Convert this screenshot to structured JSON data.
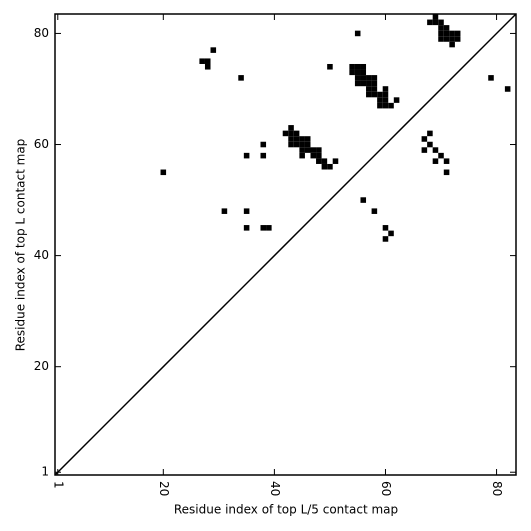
{
  "chart_data": {
    "type": "scatter",
    "xlabel": "Residue index of top L/5 contact map",
    "ylabel": "Residue index of top L contact map",
    "xlim": [
      0.5,
      83.5
    ],
    "ylim": [
      0.5,
      83.5
    ],
    "xticks": [
      1,
      20,
      40,
      60,
      80
    ],
    "yticks": [
      1,
      20,
      40,
      60,
      80
    ],
    "color": "#000000",
    "marker": "square",
    "x": [
      20,
      29,
      27,
      28,
      28,
      34,
      55,
      50,
      54,
      54,
      55,
      55,
      56,
      56,
      55,
      56,
      55,
      56,
      57,
      57,
      58,
      57,
      58,
      57,
      58,
      58,
      59,
      59,
      60,
      60,
      60,
      59,
      60,
      61,
      62,
      68,
      69,
      69,
      70,
      70,
      71,
      70,
      71,
      72,
      73,
      70,
      71,
      72,
      73,
      72,
      79,
      82,
      42,
      43,
      43,
      44,
      43,
      44,
      43,
      44,
      45,
      46,
      45,
      46,
      45,
      46,
      47,
      48,
      45,
      47,
      48,
      48,
      49,
      49,
      50,
      51,
      35,
      38,
      38,
      31,
      35,
      35,
      38,
      39,
      56,
      58,
      60,
      61,
      60,
      67,
      68,
      68,
      67,
      69,
      70,
      69,
      71,
      71
    ],
    "y": [
      55,
      77,
      75,
      75,
      74,
      72,
      80,
      74,
      73,
      74,
      74,
      73,
      74,
      73,
      72,
      72,
      71,
      71,
      71,
      72,
      72,
      70,
      70,
      69,
      69,
      71,
      69,
      68,
      68,
      69,
      70,
      67,
      67,
      67,
      68,
      82,
      83,
      82,
      82,
      81,
      81,
      80,
      80,
      80,
      80,
      79,
      79,
      79,
      79,
      78,
      72,
      70,
      62,
      63,
      62,
      62,
      61,
      61,
      60,
      60,
      61,
      61,
      60,
      60,
      59,
      59,
      59,
      59,
      58,
      58,
      58,
      57,
      57,
      56,
      56,
      57,
      58,
      60,
      58,
      48,
      48,
      45,
      45,
      45,
      50,
      48,
      45,
      44,
      43,
      61,
      62,
      60,
      59,
      59,
      58,
      57,
      57,
      55
    ]
  }
}
